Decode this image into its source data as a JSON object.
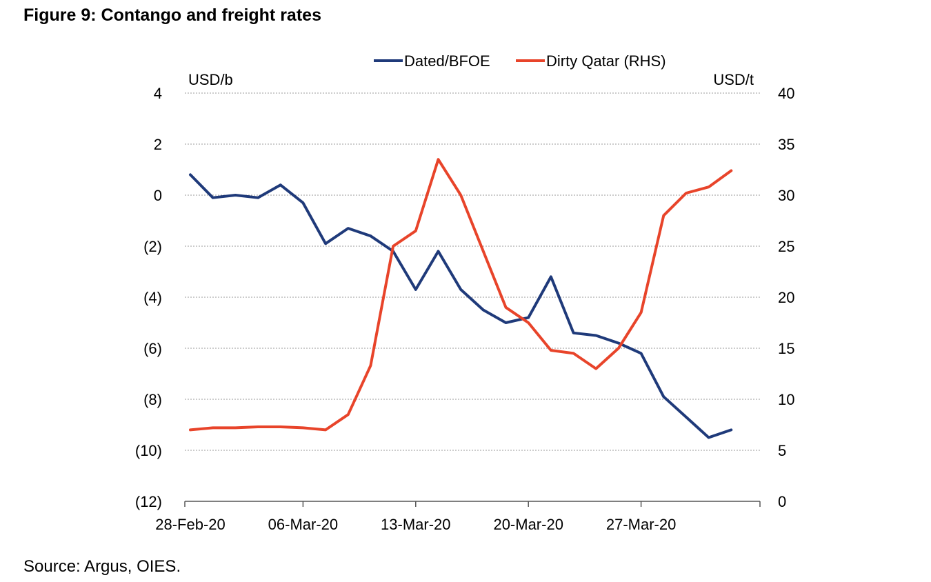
{
  "figure": {
    "title": "Figure 9: Contango and freight rates",
    "source": "Source: Argus, OIES."
  },
  "chart_data": {
    "type": "line",
    "left_axis_unit": "USD/b",
    "right_axis_unit": "USD/t",
    "left_ticks": [
      "4",
      "2",
      "0",
      "(2)",
      "(4)",
      "(6)",
      "(8)",
      "(10)",
      "(12)"
    ],
    "right_ticks": [
      "40",
      "35",
      "30",
      "25",
      "20",
      "15",
      "10",
      "5",
      "0"
    ],
    "ylim_left": [
      -12,
      4
    ],
    "ylim_right": [
      0,
      40
    ],
    "x_tick_labels": [
      "28-Feb-20",
      "06-Mar-20",
      "13-Mar-20",
      "20-Mar-20",
      "27-Mar-20"
    ],
    "x": [
      "28-Feb-20",
      "02-Mar-20",
      "03-Mar-20",
      "04-Mar-20",
      "05-Mar-20",
      "06-Mar-20",
      "09-Mar-20",
      "10-Mar-20",
      "11-Mar-20",
      "12-Mar-20",
      "13-Mar-20",
      "16-Mar-20",
      "17-Mar-20",
      "18-Mar-20",
      "19-Mar-20",
      "20-Mar-20",
      "23-Mar-20",
      "24-Mar-20",
      "25-Mar-20",
      "26-Mar-20",
      "27-Mar-20",
      "30-Mar-20",
      "31-Mar-20",
      "01-Apr-20",
      "02-Apr-20",
      "03-Apr-20"
    ],
    "series": [
      {
        "name": "Dated/BFOE",
        "axis": "left",
        "color": "#1f3a7a",
        "values": [
          0.8,
          -0.1,
          0.0,
          -0.1,
          0.4,
          -0.3,
          -1.9,
          -1.3,
          -1.6,
          -2.2,
          -3.7,
          -2.2,
          -3.7,
          -4.5,
          -5.0,
          -4.8,
          -3.2,
          -5.4,
          -5.5,
          -5.8,
          -6.2,
          -7.9,
          -8.7,
          -9.5,
          -9.2,
          -9.2
        ],
        "note_last": "line ends at 03-Apr-20"
      },
      {
        "name": "Dirty Qatar (RHS)",
        "axis": "right",
        "color": "#e8442a",
        "values": [
          7.0,
          7.2,
          7.2,
          7.3,
          7.3,
          7.2,
          7.0,
          8.5,
          13.3,
          25.0,
          26.5,
          33.5,
          30.0,
          24.5,
          19.0,
          17.5,
          14.8,
          14.5,
          13.0,
          15.0,
          18.5,
          28.0,
          30.2,
          30.8,
          32.4,
          32.4
        ]
      }
    ],
    "grid": true,
    "legend": "top-center"
  }
}
